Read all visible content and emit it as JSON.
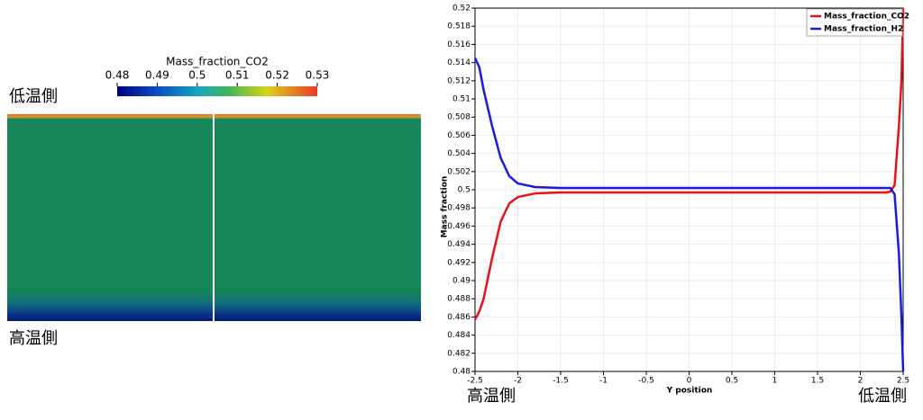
{
  "contour": {
    "colorbar": {
      "title": "Mass_fraction_CO2",
      "range": [
        0.48,
        0.53
      ],
      "ticks": [
        0.48,
        0.49,
        0.5,
        0.51,
        0.52,
        0.53
      ]
    },
    "labels": {
      "top": "低温側",
      "bottom": "高温側"
    }
  },
  "chart_data": {
    "type": "line",
    "xlabel": "Y position",
    "ylabel": "Mass fraction",
    "annotations": [
      "高温側",
      "低温側"
    ],
    "x": [
      -2.5,
      -2.45,
      -2.4,
      -2.3,
      -2.2,
      -2.1,
      -2.0,
      -1.8,
      -1.5,
      0,
      2.3,
      2.35,
      2.4,
      2.45,
      2.48,
      2.5
    ],
    "series": [
      {
        "name": "Mass_fraction_CO2",
        "color": "#e8101a",
        "values": [
          0.4857,
          0.4866,
          0.488,
          0.4925,
          0.4965,
          0.4985,
          0.4992,
          0.4996,
          0.4997,
          0.4997,
          0.4997,
          0.4998,
          0.5005,
          0.507,
          0.512,
          0.52
        ]
      },
      {
        "name": "Mass_fraction_H2",
        "color": "#1a1adf",
        "values": [
          0.5145,
          0.5135,
          0.511,
          0.507,
          0.5035,
          0.5015,
          0.5007,
          0.5003,
          0.5002,
          0.5002,
          0.5002,
          0.5002,
          0.4995,
          0.493,
          0.486,
          0.48
        ]
      }
    ],
    "xlim": [
      -2.5,
      2.5
    ],
    "ylim": [
      0.48,
      0.52
    ],
    "xticks": [
      -2.5,
      -2,
      -1.5,
      -1,
      -0.5,
      0,
      0.5,
      1,
      1.5,
      2,
      2.5
    ],
    "yticks": [
      0.48,
      0.482,
      0.484,
      0.486,
      0.488,
      0.49,
      0.492,
      0.494,
      0.496,
      0.498,
      0.5,
      0.502,
      0.504,
      0.506,
      0.508,
      0.51,
      0.512,
      0.514,
      0.516,
      0.518,
      0.52
    ],
    "grid": true,
    "legend": "upper right"
  }
}
